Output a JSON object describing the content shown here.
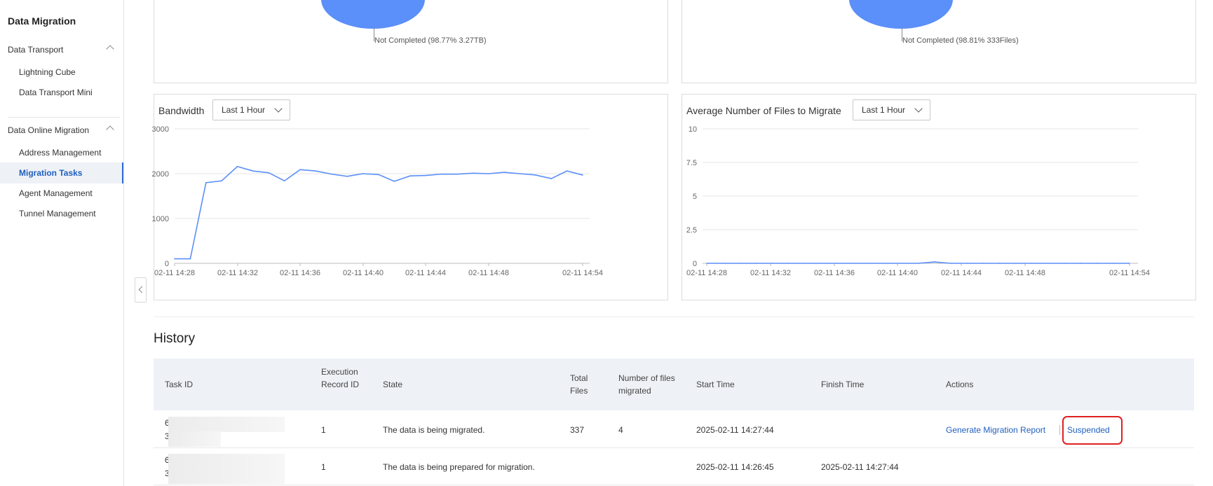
{
  "sidebar": {
    "title": "Data Migration",
    "groups": [
      {
        "label": "Data Transport",
        "items": [
          "Lightning Cube",
          "Data Transport Mini"
        ]
      },
      {
        "label": "Data Online Migration",
        "items": [
          "Address Management",
          "Migration Tasks",
          "Agent Management",
          "Tunnel Management"
        ]
      }
    ],
    "active_item": "Migration Tasks"
  },
  "pies": {
    "left_caption": "Not Completed (98.77% 3.27TB)",
    "right_caption": "Not Completed (98.81% 333Files)"
  },
  "bandwidth": {
    "title": "Bandwidth",
    "range": "Last 1 Hour"
  },
  "files": {
    "title": "Average Number of Files to Migrate",
    "range": "Last 1 Hour"
  },
  "chart_data": [
    {
      "type": "line",
      "title": "Bandwidth",
      "yticks": [
        "3000",
        "2000",
        "1000",
        "0"
      ],
      "ylim": [
        0,
        3000
      ],
      "xticks": [
        "02-11 14:28",
        "02-11 14:32",
        "02-11 14:36",
        "02-11 14:40",
        "02-11 14:44",
        "02-11 14:48",
        "02-11 14:54"
      ],
      "series": [
        {
          "values": [
            100,
            100,
            1800,
            1840,
            2160,
            2060,
            2020,
            1840,
            2090,
            2060,
            1990,
            1940,
            2000,
            1980,
            1830,
            1950,
            1960,
            1990,
            1990,
            2010,
            2000,
            2030,
            2000,
            1970,
            1890,
            2060,
            1970
          ]
        }
      ],
      "color": "#5b8ff9"
    },
    {
      "type": "line",
      "title": "Average Number of Files to Migrate",
      "yticks": [
        "10",
        "7.5",
        "5",
        "2.5",
        "0"
      ],
      "ylim": [
        0,
        10
      ],
      "xticks": [
        "02-11 14:28",
        "02-11 14:32",
        "02-11 14:36",
        "02-11 14:40",
        "02-11 14:44",
        "02-11 14:48",
        "02-11 14:54"
      ],
      "series": [
        {
          "values": [
            0,
            0,
            0,
            0,
            0,
            0,
            0,
            0,
            0,
            0,
            0,
            0,
            0,
            0,
            0.1,
            0,
            0,
            0,
            0,
            0,
            0,
            0,
            0,
            0,
            0,
            0,
            0
          ]
        }
      ],
      "color": "#5b8ff9"
    }
  ],
  "history": {
    "title": "History",
    "headers": {
      "task_id": "Task ID",
      "exec_record_id": "Execution Record ID",
      "state": "State",
      "total_files": "Total Files",
      "num_files_migrated": "Number of files migrated",
      "start_time": "Start Time",
      "finish_time": "Finish Time",
      "actions": "Actions"
    },
    "rows": [
      {
        "task_id_start": "6",
        "task_id_line2": "3",
        "exec_record_id": "1",
        "state": "The data is being migrated.",
        "total_files": "337",
        "num_files_migrated": "4",
        "start_time": "2025-02-11 14:27:44",
        "finish_time": "",
        "action_report": "Generate Migration Report",
        "action_status": "Suspended"
      },
      {
        "task_id_start": "6",
        "task_id_line2": "3",
        "exec_record_id": "1",
        "state": "The data is being prepared for migration.",
        "total_files": "",
        "num_files_migrated": "",
        "start_time": "2025-02-11 14:26:45",
        "finish_time": "2025-02-11 14:27:44"
      }
    ]
  }
}
